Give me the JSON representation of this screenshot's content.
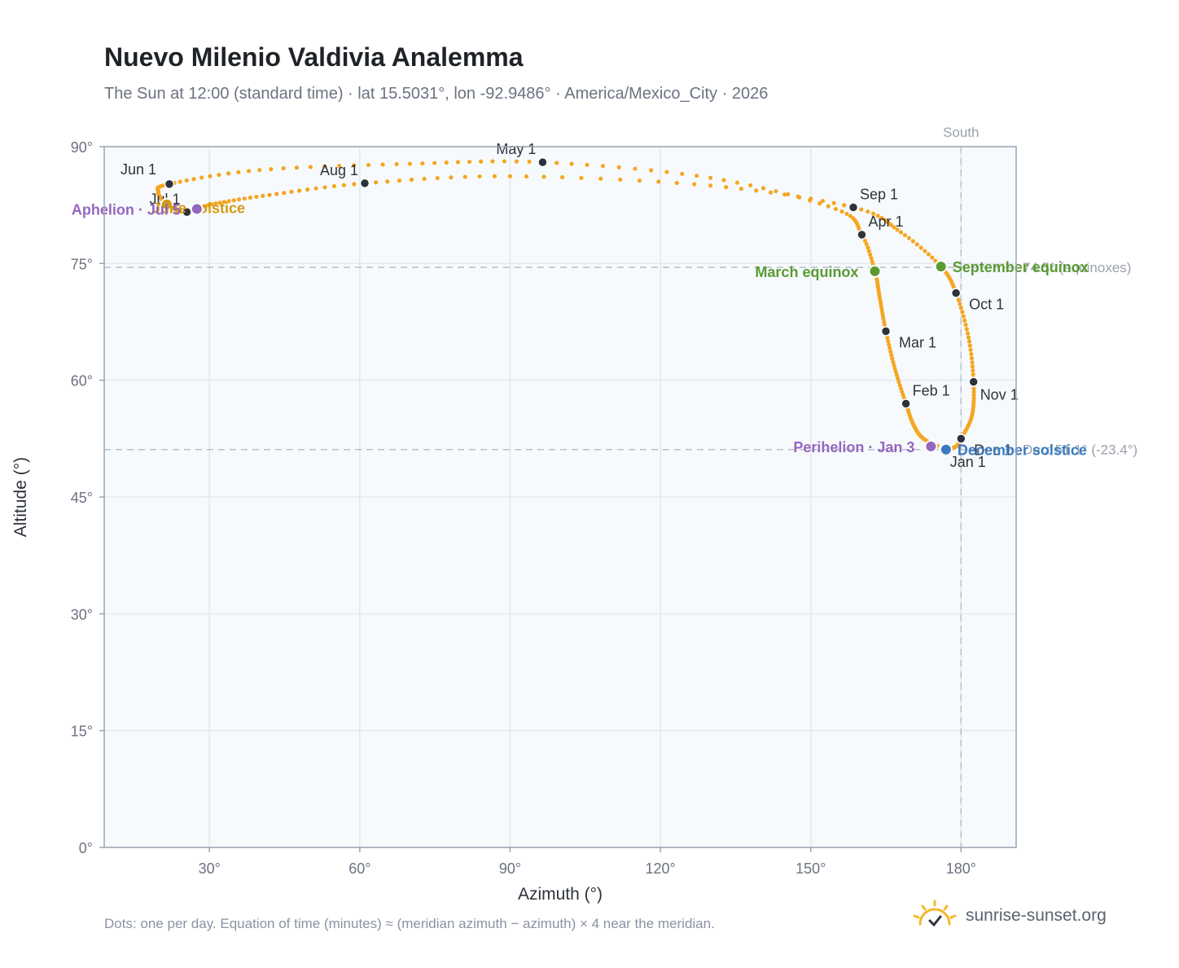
{
  "title": "Nuevo Milenio Valdivia Analemma",
  "subtitle": "The Sun at 12:00 (standard time) · lat 15.5031°, lon -92.9486° · America/Mexico_City · 2026",
  "footnote": "Dots: one per day. Equation of time (minutes) ≈ (meridian azimuth − azimuth) × 4 near the meridian.",
  "brand": {
    "name": "sunrise-sunset.org",
    "icon": "sun-logo-icon"
  },
  "colors": {
    "curve": "#f5a623",
    "month_marker": "#2d333b",
    "equinox": "#5a9a32",
    "solstice_june": "#d49a12",
    "solstice_december": "#3b7bbf",
    "apsis": "#9467bd",
    "plot_bg": "#f7fafd",
    "grid": "#e3e8ee",
    "ref_line": "#b5c0cc"
  },
  "chart_data": {
    "type": "scatter",
    "title": "Nuevo Milenio Valdivia Analemma",
    "xlabel": "Azimuth (°)",
    "ylabel": "Altitude (°)",
    "xlim": [
      9,
      191
    ],
    "ylim": [
      0,
      90
    ],
    "xticks": [
      30,
      60,
      90,
      120,
      150,
      180
    ],
    "yticks": [
      0,
      15,
      30,
      45,
      60,
      75,
      90
    ],
    "xtick_labels": [
      "30°",
      "60°",
      "90°",
      "120°",
      "150°",
      "180°"
    ],
    "ytick_labels": [
      "0°",
      "15°",
      "30°",
      "45°",
      "60°",
      "75°",
      "90°"
    ],
    "grid": true,
    "south_line": {
      "azimuth": 180,
      "label": "South"
    },
    "reference_lines": [
      {
        "altitude": 74.5,
        "label": "74.5° (equinoxes)"
      },
      {
        "altitude": 51.1,
        "label": "Dec: 51.1° (-23.4°)"
      }
    ],
    "series": [
      {
        "points": [
          {
            "date": "Jan 1",
            "az": 176.5,
            "alt": 51.2
          },
          {
            "date": "Jan 10",
            "az": 172.5,
            "alt": 52.5
          },
          {
            "date": "Jan 20",
            "az": 170.5,
            "alt": 54.3
          },
          {
            "date": "Feb 1",
            "az": 169.0,
            "alt": 57.0
          },
          {
            "date": "Feb 15",
            "az": 166.8,
            "alt": 61.5
          },
          {
            "date": "Mar 1",
            "az": 165.0,
            "alt": 66.3
          },
          {
            "date": "Mar 10",
            "az": 163.8,
            "alt": 70.5
          },
          {
            "date": "Mar 20",
            "az": 162.8,
            "alt": 74.0
          },
          {
            "date": "Apr 1",
            "az": 160.2,
            "alt": 78.7
          },
          {
            "date": "Apr 10",
            "az": 155.0,
            "alt": 82.0
          },
          {
            "date": "Apr 20",
            "az": 130.0,
            "alt": 86.0
          },
          {
            "date": "May 1",
            "az": 96.5,
            "alt": 88.0
          },
          {
            "date": "May 10",
            "az": 70.0,
            "alt": 87.8
          },
          {
            "date": "May 20",
            "az": 40.0,
            "alt": 87.0
          },
          {
            "date": "Jun 1",
            "az": 22.0,
            "alt": 85.2
          },
          {
            "date": "Jun 10",
            "az": 19.8,
            "alt": 84.2
          },
          {
            "date": "Jun 21",
            "az": 21.5,
            "alt": 82.6
          },
          {
            "date": "Jul 1",
            "az": 25.5,
            "alt": 81.6
          },
          {
            "date": "Jul 10",
            "az": 30.5,
            "alt": 82.6
          },
          {
            "date": "Jul 20",
            "az": 42.0,
            "alt": 83.8
          },
          {
            "date": "Aug 1",
            "az": 61.0,
            "alt": 85.3
          },
          {
            "date": "Aug 10",
            "az": 90.0,
            "alt": 86.2
          },
          {
            "date": "Aug 20",
            "az": 130.0,
            "alt": 85.0
          },
          {
            "date": "Sep 1",
            "az": 158.5,
            "alt": 82.2
          },
          {
            "date": "Sep 10",
            "az": 168.0,
            "alt": 79.0
          },
          {
            "date": "Sep 22",
            "az": 176.0,
            "alt": 74.6
          },
          {
            "date": "Oct 1",
            "az": 179.0,
            "alt": 71.2
          },
          {
            "date": "Oct 15",
            "az": 181.5,
            "alt": 65.5
          },
          {
            "date": "Nov 1",
            "az": 182.5,
            "alt": 59.8
          },
          {
            "date": "Nov 15",
            "az": 182.2,
            "alt": 55.5
          },
          {
            "date": "Dec 1",
            "az": 180.0,
            "alt": 52.5
          },
          {
            "date": "Dec 10",
            "az": 179.0,
            "alt": 51.5
          },
          {
            "date": "Dec 21",
            "az": 177.0,
            "alt": 51.1
          },
          {
            "date": "Dec 31",
            "az": 176.5,
            "alt": 51.2
          }
        ]
      }
    ],
    "month_markers": [
      {
        "label": "Jan 1",
        "az": 176.5,
        "alt": 51.2,
        "anchor": "below-right"
      },
      {
        "label": "Feb 1",
        "az": 169.0,
        "alt": 57.0,
        "anchor": "above-right"
      },
      {
        "label": "Mar 1",
        "az": 165.0,
        "alt": 66.3,
        "anchor": "right"
      },
      {
        "label": "Apr 1",
        "az": 160.2,
        "alt": 78.7,
        "anchor": "above-right"
      },
      {
        "label": "May 1",
        "az": 96.5,
        "alt": 88.0,
        "anchor": "above-left"
      },
      {
        "label": "Jun 1",
        "az": 22.0,
        "alt": 85.2,
        "anchor": "left"
      },
      {
        "label": "Jul 1",
        "az": 25.5,
        "alt": 81.6,
        "anchor": "above-left"
      },
      {
        "label": "Aug 1",
        "az": 61.0,
        "alt": 85.3,
        "anchor": "above-left"
      },
      {
        "label": "Sep 1",
        "az": 158.5,
        "alt": 82.2,
        "anchor": "above-right"
      },
      {
        "label": "Oct 1",
        "az": 179.0,
        "alt": 71.2,
        "anchor": "right"
      },
      {
        "label": "Nov 1",
        "az": 182.5,
        "alt": 59.8,
        "anchor": "below-right"
      },
      {
        "label": "Dec 1",
        "az": 180.0,
        "alt": 52.5,
        "anchor": "right"
      }
    ],
    "events": [
      {
        "label": "March equinox",
        "az": 162.8,
        "alt": 74.0,
        "color": "#5a9a32",
        "side": "left"
      },
      {
        "label": "September equinox",
        "az": 176.0,
        "alt": 74.6,
        "color": "#5a9a32",
        "side": "right"
      },
      {
        "label": "June solstice",
        "az": 21.5,
        "alt": 82.6,
        "color": "#d49a12",
        "side": "right-below"
      },
      {
        "label": "December solstice",
        "az": 177.0,
        "alt": 51.1,
        "color": "#3b7bbf",
        "side": "right"
      },
      {
        "label": "Aphelion · Jul 5",
        "az": 27.5,
        "alt": 82.0,
        "color": "#9467bd",
        "side": "left"
      },
      {
        "label": "Perihelion · Jan 3",
        "az": 174.0,
        "alt": 51.5,
        "color": "#9467bd",
        "side": "left"
      }
    ]
  }
}
